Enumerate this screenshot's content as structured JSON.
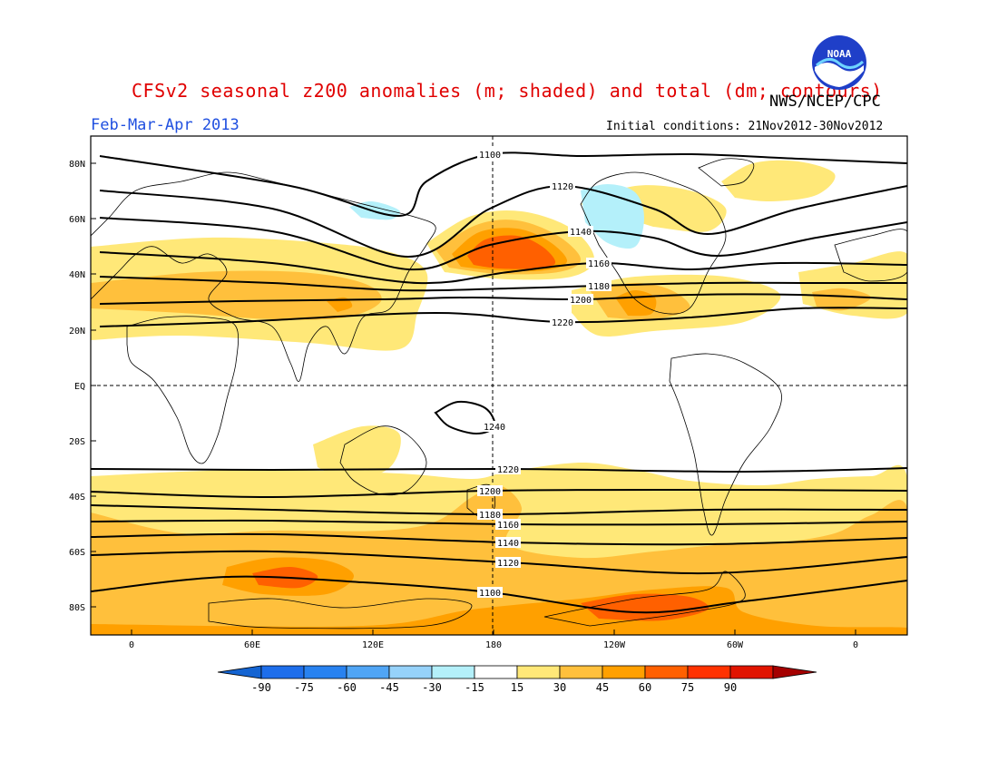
{
  "header": {
    "title": "CFSv2 seasonal z200 anomalies (m; shaded) and total (dm; contours)",
    "agency": "NWS/NCEP/CPC",
    "season": "Feb-Mar-Apr 2013",
    "initial_conditions": "Initial conditions: 21Nov2012-30Nov2012",
    "logo_icon": "noaa-logo-icon",
    "logo_text": "NOAA"
  },
  "map": {
    "lat_labels": [
      "80N",
      "60N",
      "40N",
      "20N",
      "EQ",
      "20S",
      "40S",
      "60S",
      "80S"
    ],
    "lon_labels": [
      "0",
      "60E",
      "120E",
      "180",
      "120W",
      "60W",
      "0"
    ]
  },
  "contours": [
    {
      "label": "1100",
      "pts": [
        [
          110,
          172
        ],
        [
          320,
          205
        ],
        [
          440,
          238
        ],
        [
          470,
          200
        ],
        [
          540,
          170
        ],
        [
          640,
          172
        ],
        [
          760,
          170
        ],
        [
          880,
          175
        ],
        [
          1000,
          180
        ]
      ]
    },
    {
      "label": "1120",
      "pts": [
        [
          110,
          210
        ],
        [
          300,
          230
        ],
        [
          450,
          283
        ],
        [
          540,
          230
        ],
        [
          620,
          205
        ],
        [
          720,
          230
        ],
        [
          780,
          258
        ],
        [
          880,
          230
        ],
        [
          1000,
          205
        ]
      ]
    },
    {
      "label": "1140",
      "pts": [
        [
          110,
          240
        ],
        [
          300,
          255
        ],
        [
          450,
          297
        ],
        [
          540,
          270
        ],
        [
          640,
          255
        ],
        [
          720,
          262
        ],
        [
          790,
          282
        ],
        [
          900,
          262
        ],
        [
          1000,
          245
        ]
      ]
    },
    {
      "label": "1160",
      "pts": [
        [
          110,
          278
        ],
        [
          300,
          290
        ],
        [
          460,
          312
        ],
        [
          560,
          300
        ],
        [
          660,
          290
        ],
        [
          760,
          297
        ],
        [
          860,
          290
        ],
        [
          1000,
          292
        ]
      ]
    },
    {
      "label": "1180",
      "pts": [
        [
          110,
          305
        ],
        [
          300,
          312
        ],
        [
          440,
          320
        ],
        [
          560,
          318
        ],
        [
          660,
          315
        ],
        [
          780,
          312
        ],
        [
          900,
          312
        ],
        [
          1000,
          312
        ]
      ]
    },
    {
      "label": "1200",
      "pts": [
        [
          110,
          335
        ],
        [
          260,
          332
        ],
        [
          420,
          330
        ],
        [
          520,
          328
        ],
        [
          640,
          330
        ],
        [
          760,
          325
        ],
        [
          880,
          325
        ],
        [
          1000,
          330
        ]
      ]
    },
    {
      "label": "1220",
      "pts": [
        [
          110,
          360
        ],
        [
          260,
          355
        ],
        [
          480,
          345
        ],
        [
          620,
          355
        ],
        [
          760,
          350
        ],
        [
          880,
          340
        ],
        [
          1000,
          340
        ]
      ]
    },
    {
      "label": "1240",
      "pts": [
        [
          480,
          455
        ],
        [
          505,
          443
        ],
        [
          535,
          450
        ],
        [
          545,
          470
        ],
        [
          525,
          478
        ],
        [
          495,
          470
        ],
        [
          480,
          455
        ]
      ]
    },
    {
      "label": "1220",
      "pts": [
        [
          100,
          517
        ],
        [
          300,
          518
        ],
        [
          560,
          517
        ],
        [
          820,
          520
        ],
        [
          1000,
          516
        ]
      ]
    },
    {
      "label": "1200",
      "pts": [
        [
          100,
          542
        ],
        [
          300,
          548
        ],
        [
          540,
          541
        ],
        [
          780,
          540
        ],
        [
          1000,
          541
        ]
      ]
    },
    {
      "label": "1180",
      "pts": [
        [
          100,
          557
        ],
        [
          300,
          562
        ],
        [
          540,
          567
        ],
        [
          780,
          562
        ],
        [
          1000,
          562
        ]
      ]
    },
    {
      "label": "1160",
      "pts": [
        [
          100,
          575
        ],
        [
          300,
          574
        ],
        [
          560,
          578
        ],
        [
          780,
          578
        ],
        [
          1000,
          575
        ]
      ]
    },
    {
      "label": "1140",
      "pts": [
        [
          100,
          592
        ],
        [
          300,
          589
        ],
        [
          560,
          598
        ],
        [
          780,
          600
        ],
        [
          1000,
          593
        ]
      ]
    },
    {
      "label": "1120",
      "pts": [
        [
          100,
          612
        ],
        [
          300,
          608
        ],
        [
          560,
          620
        ],
        [
          780,
          632
        ],
        [
          1000,
          614
        ]
      ]
    },
    {
      "label": "1100",
      "pts": [
        [
          100,
          652
        ],
        [
          250,
          636
        ],
        [
          400,
          642
        ],
        [
          540,
          653
        ],
        [
          700,
          675
        ],
        [
          820,
          663
        ],
        [
          1000,
          640
        ]
      ]
    }
  ],
  "anomaly_regions": [
    {
      "level": "15-30",
      "pts": [
        [
          100,
          272
        ],
        [
          230,
          262
        ],
        [
          360,
          268
        ],
        [
          430,
          278
        ],
        [
          470,
          300
        ],
        [
          460,
          345
        ],
        [
          440,
          385
        ],
        [
          340,
          378
        ],
        [
          200,
          370
        ],
        [
          100,
          375
        ]
      ]
    },
    {
      "level": "30-45",
      "pts": [
        [
          100,
          312
        ],
        [
          220,
          300
        ],
        [
          330,
          300
        ],
        [
          400,
          312
        ],
        [
          420,
          332
        ],
        [
          380,
          350
        ],
        [
          300,
          352
        ],
        [
          200,
          345
        ],
        [
          100,
          340
        ]
      ]
    },
    {
      "level": "45-60",
      "pts": [
        [
          360,
          332
        ],
        [
          380,
          328
        ],
        [
          388,
          338
        ],
        [
          372,
          344
        ]
      ]
    },
    {
      "level": "15-30",
      "pts": [
        [
          470,
          268
        ],
        [
          520,
          238
        ],
        [
          575,
          233
        ],
        [
          630,
          252
        ],
        [
          655,
          285
        ],
        [
          630,
          305
        ],
        [
          560,
          308
        ],
        [
          490,
          300
        ]
      ]
    },
    {
      "level": "30-45",
      "pts": [
        [
          480,
          275
        ],
        [
          525,
          248
        ],
        [
          570,
          243
        ],
        [
          615,
          260
        ],
        [
          640,
          286
        ],
        [
          615,
          300
        ],
        [
          550,
          302
        ],
        [
          495,
          295
        ]
      ]
    },
    {
      "level": "45-60",
      "pts": [
        [
          498,
          280
        ],
        [
          528,
          256
        ],
        [
          570,
          252
        ],
        [
          605,
          266
        ],
        [
          625,
          288
        ],
        [
          600,
          298
        ],
        [
          548,
          298
        ],
        [
          508,
          294
        ]
      ]
    },
    {
      "level": "60-75",
      "pts": [
        [
          515,
          282
        ],
        [
          535,
          264
        ],
        [
          570,
          260
        ],
        [
          598,
          272
        ],
        [
          612,
          290
        ],
        [
          590,
          296
        ],
        [
          550,
          296
        ],
        [
          522,
          292
        ]
      ]
    },
    {
      "level": "15-30",
      "pts": [
        [
          630,
          320
        ],
        [
          700,
          305
        ],
        [
          800,
          305
        ],
        [
          860,
          325
        ],
        [
          820,
          355
        ],
        [
          720,
          365
        ],
        [
          660,
          370
        ],
        [
          630,
          345
        ]
      ]
    },
    {
      "level": "30-45",
      "pts": [
        [
          650,
          320
        ],
        [
          700,
          312
        ],
        [
          740,
          320
        ],
        [
          760,
          340
        ],
        [
          720,
          352
        ],
        [
          670,
          350
        ]
      ]
    },
    {
      "level": "45-60",
      "pts": [
        [
          678,
          328
        ],
        [
          700,
          320
        ],
        [
          722,
          328
        ],
        [
          718,
          346
        ],
        [
          692,
          348
        ]
      ]
    },
    {
      "level": "15-30",
      "pts": [
        [
          880,
          300
        ],
        [
          940,
          290
        ],
        [
          1000,
          280
        ],
        [
          1000,
          345
        ],
        [
          940,
          348
        ],
        [
          885,
          335
        ]
      ]
    },
    {
      "level": "30-45",
      "pts": [
        [
          895,
          322
        ],
        [
          930,
          318
        ],
        [
          960,
          328
        ],
        [
          930,
          342
        ],
        [
          900,
          338
        ]
      ]
    },
    {
      "level": "15-30",
      "pts": [
        [
          640,
          225
        ],
        [
          700,
          205
        ],
        [
          760,
          210
        ],
        [
          800,
          230
        ],
        [
          780,
          255
        ],
        [
          720,
          250
        ]
      ]
    },
    {
      "level": "15-30",
      "pts": [
        [
          795,
          200
        ],
        [
          830,
          180
        ],
        [
          880,
          178
        ],
        [
          920,
          192
        ],
        [
          900,
          215
        ],
        [
          850,
          222
        ],
        [
          810,
          218
        ]
      ]
    },
    {
      "level": "15-30",
      "pts": [
        [
          345,
          490
        ],
        [
          400,
          470
        ],
        [
          440,
          478
        ],
        [
          430,
          515
        ],
        [
          385,
          530
        ],
        [
          350,
          515
        ]
      ]
    },
    {
      "level": "15-30",
      "pts": [
        [
          100,
          525
        ],
        [
          200,
          520
        ],
        [
          300,
          518
        ],
        [
          440,
          522
        ],
        [
          520,
          528
        ],
        [
          560,
          520
        ],
        [
          640,
          510
        ],
        [
          700,
          518
        ],
        [
          760,
          530
        ],
        [
          840,
          535
        ],
        [
          900,
          528
        ],
        [
          960,
          525
        ],
        [
          1000,
          526
        ],
        [
          1000,
          700
        ],
        [
          100,
          700
        ]
      ]
    },
    {
      "level": "30-45",
      "pts": [
        [
          100,
          565
        ],
        [
          200,
          588
        ],
        [
          300,
          585
        ],
        [
          420,
          585
        ],
        [
          480,
          575
        ],
        [
          520,
          548
        ],
        [
          550,
          535
        ],
        [
          575,
          560
        ],
        [
          560,
          600
        ],
        [
          640,
          615
        ],
        [
          720,
          608
        ],
        [
          800,
          600
        ],
        [
          860,
          598
        ],
        [
          920,
          588
        ],
        [
          960,
          568
        ],
        [
          1000,
          560
        ],
        [
          1000,
          700
        ],
        [
          100,
          700
        ]
      ]
    },
    {
      "level": "45-60",
      "pts": [
        [
          250,
          625
        ],
        [
          300,
          615
        ],
        [
          360,
          618
        ],
        [
          390,
          635
        ],
        [
          360,
          655
        ],
        [
          290,
          655
        ],
        [
          245,
          645
        ]
      ]
    },
    {
      "level": "45-60",
      "pts": [
        [
          100,
          688
        ],
        [
          400,
          690
        ],
        [
          520,
          672
        ],
        [
          640,
          660
        ],
        [
          720,
          650
        ],
        [
          800,
          648
        ],
        [
          820,
          675
        ],
        [
          900,
          690
        ],
        [
          1000,
          692
        ],
        [
          1000,
          700
        ],
        [
          100,
          700
        ]
      ]
    },
    {
      "level": "60-75",
      "pts": [
        [
          278,
          632
        ],
        [
          320,
          625
        ],
        [
          350,
          635
        ],
        [
          330,
          648
        ],
        [
          285,
          645
        ]
      ]
    },
    {
      "level": "60-75",
      "pts": [
        [
          640,
          665
        ],
        [
          700,
          655
        ],
        [
          760,
          658
        ],
        [
          780,
          672
        ],
        [
          730,
          684
        ],
        [
          660,
          682
        ]
      ]
    },
    {
      "level": "-30--15",
      "pts": [
        [
          385,
          228
        ],
        [
          410,
          222
        ],
        [
          440,
          232
        ],
        [
          430,
          242
        ],
        [
          398,
          240
        ]
      ]
    },
    {
      "level": "-30--15",
      "pts": [
        [
          640,
          210
        ],
        [
          670,
          203
        ],
        [
          700,
          212
        ],
        [
          710,
          240
        ],
        [
          700,
          272
        ],
        [
          670,
          268
        ],
        [
          645,
          245
        ]
      ]
    }
  ],
  "colorbar": {
    "labels": [
      "-90",
      "-75",
      "-60",
      "-45",
      "-30",
      "-15",
      "15",
      "30",
      "45",
      "60",
      "75",
      "90"
    ],
    "colors": [
      "#1464d2",
      "#1e6eeb",
      "#2882f0",
      "#50a5f5",
      "#96d2fa",
      "#b4f0fa",
      "#ffffff",
      "#ffe878",
      "#ffc03c",
      "#ffa000",
      "#ff6000",
      "#ff3200",
      "#e11400",
      "#a50000"
    ]
  },
  "level_colors": {
    "15-30": "#ffe878",
    "30-45": "#ffc03c",
    "45-60": "#ffa000",
    "60-75": "#ff6000",
    "-30--15": "#b4f0fa"
  }
}
